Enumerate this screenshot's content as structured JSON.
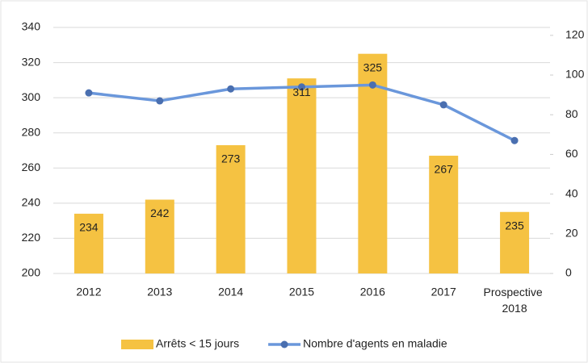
{
  "chart_data": {
    "type": "bar_line",
    "categories": [
      "2012",
      "2013",
      "2014",
      "2015",
      "2016",
      "2017",
      "Prospective 2018"
    ],
    "series": [
      {
        "name": "Arrêts < 15 jours",
        "type": "bar",
        "color": "#f5c242",
        "values": [
          234,
          242,
          273,
          311,
          325,
          267,
          235
        ]
      },
      {
        "name": "Nombre d'agents en maladie",
        "type": "line",
        "axis": "y2",
        "color": "#6a97db",
        "marker_color": "#4a6fb0",
        "values": [
          91,
          87,
          93,
          94,
          95,
          85,
          67
        ]
      }
    ],
    "ylim": [
      200,
      340
    ],
    "yticks": [
      200,
      220,
      240,
      260,
      280,
      300,
      320,
      340
    ],
    "y2lim": [
      0,
      124
    ],
    "y2ticks": [
      0,
      20,
      40,
      60,
      80,
      100,
      120
    ],
    "grid": true,
    "legend": "bottom"
  }
}
